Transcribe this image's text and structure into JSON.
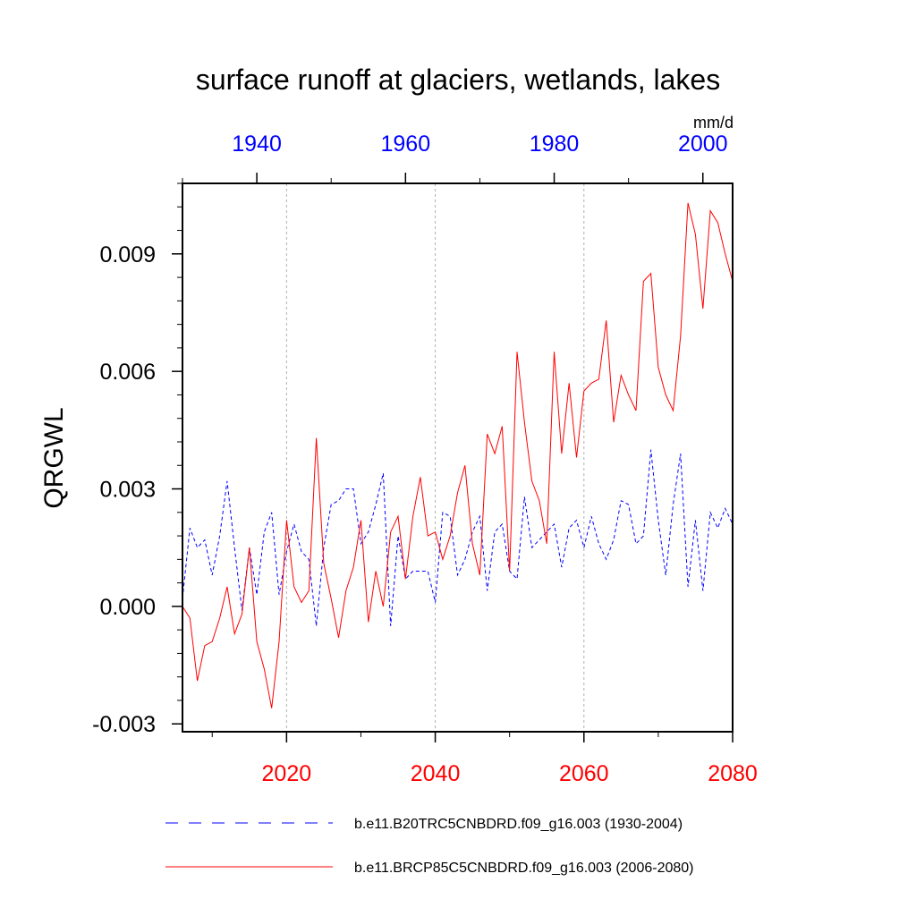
{
  "chart_data": {
    "type": "line",
    "title": "surface runoff at glaciers, wetlands, lakes",
    "ylabel": "QRGWL",
    "units": "mm/d",
    "ylim": [
      -0.0032,
      0.0108
    ],
    "yticks": [
      -0.003,
      0.0,
      0.003,
      0.006,
      0.009
    ],
    "ytick_labels": [
      "-0.003",
      "0.000",
      "0.003",
      "0.006",
      "0.009"
    ],
    "bottom_axis": {
      "range": [
        2006,
        2080
      ],
      "ticks": [
        2020,
        2040,
        2060,
        2080
      ],
      "tick_labels": [
        "2020",
        "2040",
        "2060",
        "2080"
      ],
      "color": "#ff0000"
    },
    "top_axis": {
      "range": [
        1930,
        2004
      ],
      "ticks": [
        1940,
        1960,
        1980,
        2000
      ],
      "tick_labels": [
        "1940",
        "1960",
        "1980",
        "2000"
      ],
      "color": "#0000ff"
    },
    "grid_x": [
      2020,
      2040,
      2060
    ],
    "series": [
      {
        "name": "b.e11.B20TRC5CNBDRD.f09_g16.003 (1930-2004)",
        "color": "#0000ff",
        "style": "dashed",
        "axis": "top",
        "x_start": 1930,
        "values": [
          0.0002,
          0.002,
          0.0015,
          0.0017,
          0.0008,
          0.0018,
          0.0032,
          0.0015,
          -0.0001,
          0.0015,
          0.0003,
          0.0019,
          0.0024,
          0.0003,
          0.0014,
          0.0021,
          0.0014,
          0.0012,
          -0.0005,
          0.0015,
          0.0026,
          0.0027,
          0.003,
          0.003,
          0.0016,
          0.0019,
          0.0026,
          0.0034,
          -0.0005,
          0.0018,
          0.0007,
          0.0009,
          0.0009,
          0.0009,
          0.0001,
          0.0024,
          0.0023,
          0.0008,
          0.0012,
          0.0019,
          0.0023,
          0.0004,
          0.0019,
          0.0021,
          0.0009,
          0.0007,
          0.0028,
          0.0015,
          0.0017,
          0.0019,
          0.0021,
          0.001,
          0.002,
          0.0022,
          0.0015,
          0.0023,
          0.0016,
          0.0012,
          0.0017,
          0.0027,
          0.0026,
          0.0016,
          0.0018,
          0.004,
          0.0022,
          0.0008,
          0.0026,
          0.0039,
          0.0005,
          0.0022,
          0.0004,
          0.0024,
          0.002,
          0.0025,
          0.0021
        ]
      },
      {
        "name": "b.e11.BRCP85C5CNBDRD.f09_g16.003 (2006-2080)",
        "color": "#ff0000",
        "style": "solid",
        "axis": "bottom",
        "x_start": 2006,
        "values": [
          0.0,
          -0.0003,
          -0.0019,
          -0.001,
          -0.0009,
          -0.0003,
          0.0005,
          -0.0007,
          -0.0002,
          0.0015,
          -0.0009,
          -0.0016,
          -0.0026,
          -0.0009,
          0.0022,
          0.0005,
          0.0001,
          0.0004,
          0.0043,
          0.0011,
          0.0002,
          -0.0008,
          0.0004,
          0.001,
          0.0022,
          -0.0004,
          0.0009,
          0.0,
          0.0019,
          0.0023,
          0.0007,
          0.0023,
          0.0033,
          0.0018,
          0.0019,
          0.0012,
          0.0018,
          0.0029,
          0.0036,
          0.0016,
          0.0008,
          0.0044,
          0.0039,
          0.0046,
          0.0009,
          0.0065,
          0.0047,
          0.0032,
          0.0027,
          0.0016,
          0.0065,
          0.0039,
          0.0057,
          0.0038,
          0.0055,
          0.0057,
          0.0058,
          0.0073,
          0.0047,
          0.0059,
          0.0054,
          0.005,
          0.0083,
          0.0085,
          0.0061,
          0.0054,
          0.005,
          0.0069,
          0.0103,
          0.0095,
          0.0076,
          0.0101,
          0.0098,
          0.009,
          0.0083
        ]
      }
    ]
  }
}
